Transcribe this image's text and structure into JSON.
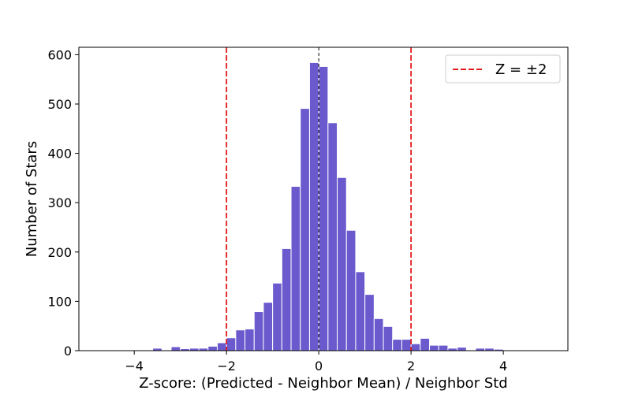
{
  "chart_data": {
    "type": "bar",
    "xlabel": "Z-score: (Predicted - Neighbor Mean) / Neighbor Std",
    "ylabel": "Number of Stars",
    "xlim": [
      -5.2,
      5.4
    ],
    "ylim": [
      0,
      615
    ],
    "xticks": [
      -4,
      -2,
      0,
      2,
      4
    ],
    "xtick_labels": [
      "−4",
      "−2",
      "0",
      "2",
      "4"
    ],
    "yticks": [
      0,
      100,
      200,
      300,
      400,
      500,
      600
    ],
    "ytick_labels": [
      "0",
      "100",
      "200",
      "300",
      "400",
      "500",
      "600"
    ],
    "bin_width": 0.2,
    "bins": [
      {
        "x0": -4.8,
        "count": 1
      },
      {
        "x0": -3.6,
        "count": 5
      },
      {
        "x0": -3.2,
        "count": 8
      },
      {
        "x0": -3.0,
        "count": 4
      },
      {
        "x0": -2.8,
        "count": 5
      },
      {
        "x0": -2.6,
        "count": 5
      },
      {
        "x0": -2.4,
        "count": 9
      },
      {
        "x0": -2.2,
        "count": 16
      },
      {
        "x0": -2.0,
        "count": 26
      },
      {
        "x0": -1.8,
        "count": 42
      },
      {
        "x0": -1.6,
        "count": 44
      },
      {
        "x0": -1.4,
        "count": 79
      },
      {
        "x0": -1.2,
        "count": 98
      },
      {
        "x0": -1.0,
        "count": 137
      },
      {
        "x0": -0.8,
        "count": 207
      },
      {
        "x0": -0.6,
        "count": 333
      },
      {
        "x0": -0.4,
        "count": 491
      },
      {
        "x0": -0.2,
        "count": 584
      },
      {
        "x0": 0.0,
        "count": 576
      },
      {
        "x0": 0.2,
        "count": 462
      },
      {
        "x0": 0.4,
        "count": 351
      },
      {
        "x0": 0.6,
        "count": 244
      },
      {
        "x0": 0.8,
        "count": 160
      },
      {
        "x0": 1.0,
        "count": 114
      },
      {
        "x0": 1.2,
        "count": 65
      },
      {
        "x0": 1.4,
        "count": 49
      },
      {
        "x0": 1.6,
        "count": 23
      },
      {
        "x0": 1.8,
        "count": 23
      },
      {
        "x0": 2.0,
        "count": 14
      },
      {
        "x0": 2.2,
        "count": 25
      },
      {
        "x0": 2.4,
        "count": 11
      },
      {
        "x0": 2.6,
        "count": 11
      },
      {
        "x0": 2.8,
        "count": 5
      },
      {
        "x0": 3.0,
        "count": 7
      },
      {
        "x0": 3.4,
        "count": 5
      },
      {
        "x0": 3.6,
        "count": 5
      },
      {
        "x0": 3.8,
        "count": 3
      },
      {
        "x0": 4.2,
        "count": 1
      },
      {
        "x0": 4.8,
        "count": 1
      }
    ],
    "reference_lines": [
      {
        "x": -2,
        "color": "#e41a1c",
        "style": "dashed"
      },
      {
        "x": 2,
        "color": "#e41a1c",
        "style": "dashed"
      },
      {
        "x": 0,
        "color": "#000000",
        "style": "dashed"
      }
    ],
    "legend": {
      "position": "top-right",
      "entries": [
        {
          "label": "Z = ±2",
          "color": "#e41a1c",
          "style": "dashed"
        }
      ]
    },
    "grid": false,
    "colors": {
      "bar_fill": "#6a5acd",
      "bar_edge": "#ffffff",
      "threshold": "#e41a1c",
      "center": "#000000"
    }
  }
}
